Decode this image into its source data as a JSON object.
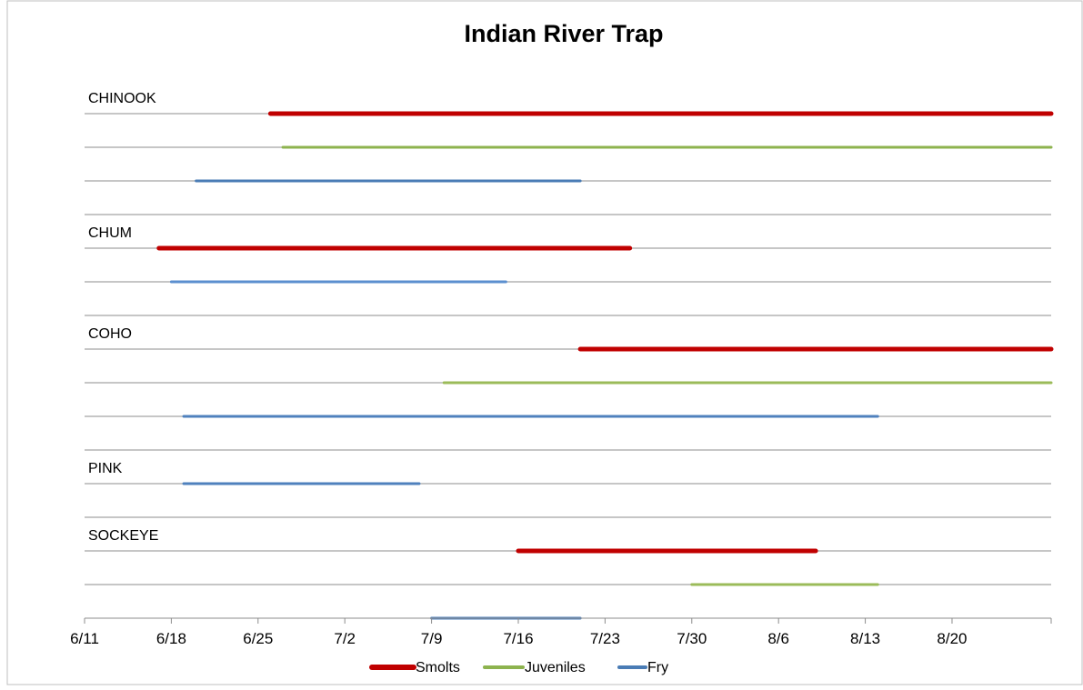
{
  "chart_data": {
    "type": "bar",
    "subtype": "gantt",
    "title": "Indian River Trap",
    "x_tick_labels": [
      "6/11",
      "6/18",
      "6/25",
      "7/2",
      "7/9",
      "7/16",
      "7/23",
      "7/30",
      "8/6",
      "8/13",
      "8/20"
    ],
    "xlim": [
      "6/11",
      "8/28"
    ],
    "legend_position": "bottom",
    "series": [
      {
        "name": "Smolts",
        "color": "#c00000"
      },
      {
        "name": "Juveniles",
        "color": "#8db34e"
      },
      {
        "name": "Fry",
        "color": "#4a7cb5"
      }
    ],
    "species": [
      {
        "name": "CHINOOK",
        "ranges": [
          {
            "series": "Smolts",
            "start": "6/26",
            "end": "8/28",
            "color": "#c00000"
          },
          {
            "series": "Juveniles",
            "start": "6/27",
            "end": "8/28",
            "color": "#8db34e"
          },
          {
            "series": "Fry",
            "start": "6/20",
            "end": "7/21",
            "color": "#4a7cb5"
          }
        ]
      },
      {
        "name": "CHUM",
        "ranges": [
          {
            "series": "Smolts",
            "start": "6/17",
            "end": "7/25",
            "color": "#c00000"
          },
          {
            "series": "Fry",
            "start": "6/18",
            "end": "7/15",
            "color": "#5b8fcf"
          }
        ]
      },
      {
        "name": "COHO",
        "ranges": [
          {
            "series": "Smolts",
            "start": "7/21",
            "end": "8/28",
            "color": "#c00000"
          },
          {
            "series": "Juveniles",
            "start": "7/10",
            "end": "8/28",
            "color": "#9bbb59"
          },
          {
            "series": "Fry",
            "start": "6/19",
            "end": "8/14",
            "color": "#4f81bd"
          }
        ]
      },
      {
        "name": "PINK",
        "ranges": [
          {
            "series": "Fry",
            "start": "6/19",
            "end": "7/8",
            "color": "#4f81bd"
          }
        ]
      },
      {
        "name": "SOCKEYE",
        "ranges": [
          {
            "series": "Smolts",
            "start": "7/16",
            "end": "8/9",
            "color": "#c00000"
          },
          {
            "series": "Juveniles",
            "start": "7/30",
            "end": "8/14",
            "color": "#9bbb59"
          },
          {
            "series": "Fry",
            "start": "7/9",
            "end": "7/21",
            "color": "#4f81bd"
          }
        ]
      }
    ]
  }
}
